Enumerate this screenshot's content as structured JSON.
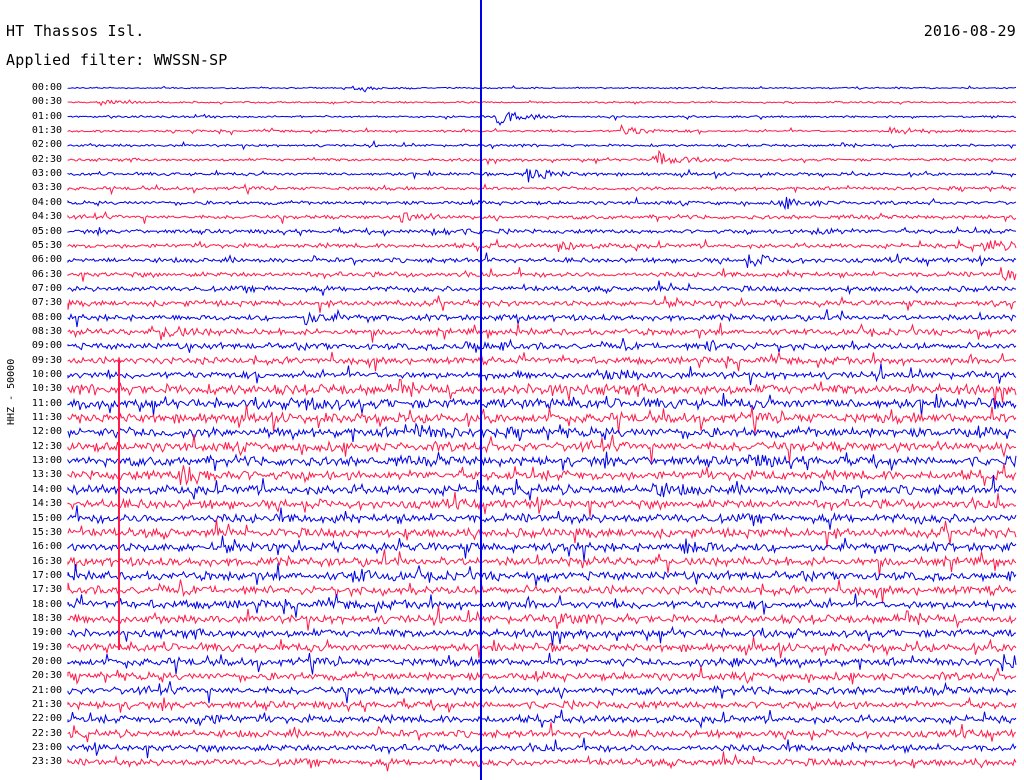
{
  "header": {
    "station": "HT Thassos Isl.",
    "date": "2016-08-29",
    "filter": "Applied filter: WWSSN-SP"
  },
  "axis": {
    "ylabel": "HHZ - 50000"
  },
  "colors": {
    "trace_a": "#0000e6",
    "trace_b": "#ff1a4a"
  },
  "chart_data": {
    "type": "line",
    "title": "HT Thassos Isl.",
    "subtitle": "Applied filter: WWSSN-SP",
    "ylabel": "HHZ - 50000",
    "row_labels": [
      "00:00",
      "00:30",
      "01:00",
      "01:30",
      "02:00",
      "02:30",
      "03:00",
      "03:30",
      "04:00",
      "04:30",
      "05:00",
      "05:30",
      "06:00",
      "06:30",
      "07:00",
      "07:30",
      "08:00",
      "08:30",
      "09:00",
      "09:30",
      "10:00",
      "10:30",
      "11:00",
      "11:30",
      "12:00",
      "12:30",
      "13:00",
      "13:30",
      "14:00",
      "14:30",
      "15:00",
      "15:30",
      "16:00",
      "16:30",
      "17:00",
      "17:30",
      "18:00",
      "18:30",
      "19:00",
      "19:30",
      "20:00",
      "20:30",
      "21:00",
      "21:30",
      "22:00",
      "22:30",
      "23:00",
      "23:30"
    ],
    "row_colors_alternate": [
      "blue",
      "red"
    ],
    "rows_per_hour": 2,
    "row_minutes": 30,
    "events": [
      {
        "row": "00:00",
        "minute": 9.0,
        "strength": 0.3
      },
      {
        "row": "00:30",
        "minute": 1.0,
        "strength": 0.3
      },
      {
        "row": "01:00",
        "minute": 13.5,
        "strength": 1.0
      },
      {
        "row": "01:30",
        "minute": 17.5,
        "strength": 0.5
      },
      {
        "row": "01:30",
        "minute": 26.0,
        "strength": 0.5
      },
      {
        "row": "02:30",
        "minute": 18.5,
        "strength": 0.9
      },
      {
        "row": "03:00",
        "minute": 14.5,
        "strength": 0.8
      },
      {
        "row": "04:00",
        "minute": 22.5,
        "strength": 0.6
      },
      {
        "row": "04:30",
        "minute": 10.5,
        "strength": 0.6
      },
      {
        "row": "05:00",
        "minute": 11.5,
        "strength": 0.5
      },
      {
        "row": "05:00",
        "minute": 23.5,
        "strength": 0.4
      },
      {
        "row": "05:30",
        "minute": 15.5,
        "strength": 0.5
      },
      {
        "row": "05:30",
        "minute": 29.0,
        "strength": 0.6
      },
      {
        "row": "06:00",
        "minute": 21.5,
        "strength": 0.5
      },
      {
        "row": "06:30",
        "minute": 29.5,
        "strength": 0.5
      },
      {
        "row": "08:00",
        "minute": 7.5,
        "strength": 0.5
      },
      {
        "row": "08:30",
        "minute": 3.0,
        "strength": 0.6
      },
      {
        "row": "09:00",
        "minute": 12.5,
        "strength": 0.5
      },
      {
        "row": "09:00",
        "minute": 20.0,
        "strength": 0.5
      },
      {
        "row": "10:00",
        "minute": 17.0,
        "strength": 0.4
      },
      {
        "row": "10:30",
        "minute": 15.0,
        "strength": 0.5
      },
      {
        "row": "11:00",
        "minute": 7.5,
        "strength": 0.5
      },
      {
        "row": "12:00",
        "minute": 11.0,
        "strength": 0.5
      },
      {
        "row": "13:00",
        "minute": 21.5,
        "strength": 0.5
      },
      {
        "row": "13:30",
        "minute": 3.5,
        "strength": 1.0
      },
      {
        "row": "14:00",
        "minute": 18.5,
        "strength": 0.5
      },
      {
        "row": "16:00",
        "minute": 19.5,
        "strength": 0.6
      },
      {
        "row": "17:00",
        "minute": 9.0,
        "strength": 0.5
      },
      {
        "row": "18:30",
        "minute": 15.5,
        "strength": 0.4
      },
      {
        "row": "20:00",
        "minute": 21.0,
        "strength": 0.4
      },
      {
        "row": "20:00",
        "minute": 29.5,
        "strength": 0.6
      },
      {
        "row": "22:00",
        "minute": 4.0,
        "strength": 0.6
      }
    ]
  }
}
